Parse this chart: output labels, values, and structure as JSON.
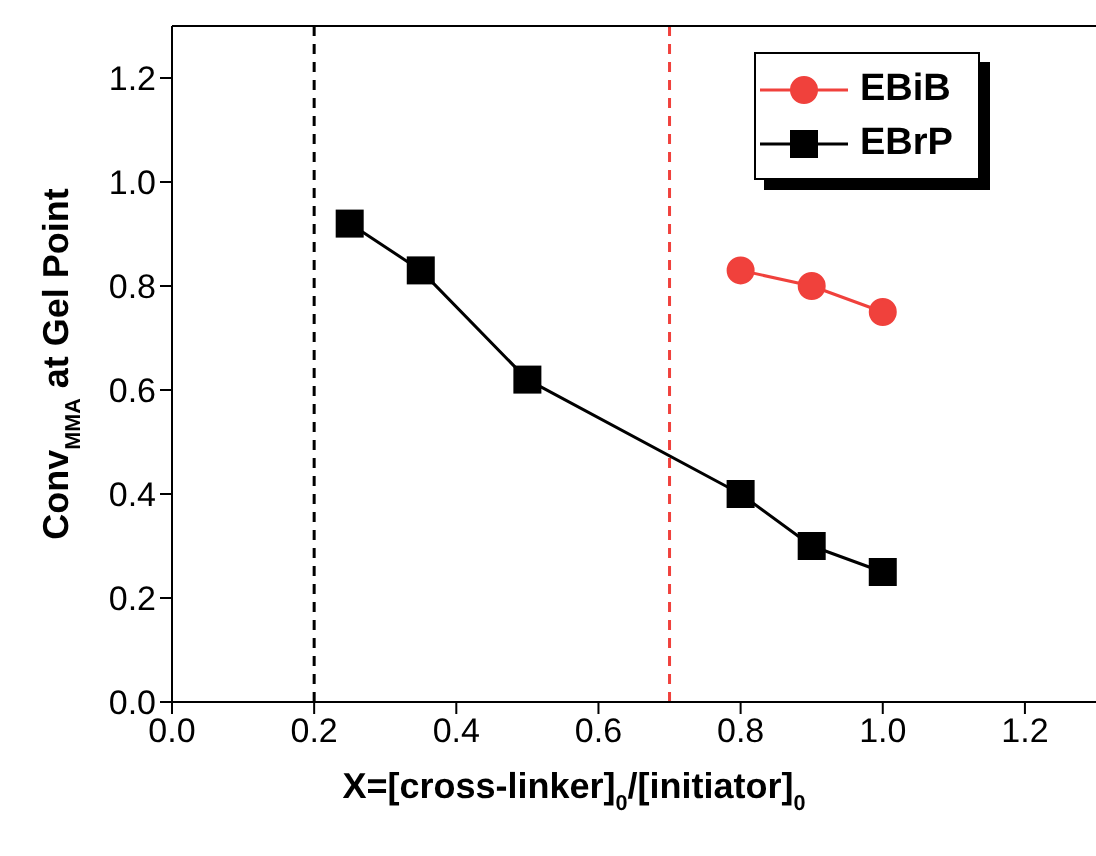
{
  "chart_data": {
    "type": "line",
    "xlabel": "X=[cross-linker]$_{0}$/[initiator]$_{0}$",
    "ylabel": "Conv$_{MMA}$ at Gel Point",
    "xlim": [
      0,
      1.3
    ],
    "xticks": [
      {
        "value": 0,
        "label": "0.0"
      },
      0.2,
      0.4,
      0.6,
      0.8,
      {
        "value": 1,
        "label": "1.0"
      },
      1.2
    ],
    "ylim": [
      0,
      1.3
    ],
    "yticks": [
      {
        "value": 0,
        "label": "0.0"
      },
      0.2,
      0.4,
      0.6,
      0.8,
      {
        "value": 1,
        "label": "1.0"
      },
      1.2
    ],
    "grid": false,
    "legend": "top right",
    "line_style": "solid",
    "series": [
      {
        "name": "EBiB",
        "color": "#f0413c",
        "marker": "circle",
        "x": [
          0.8,
          0.9,
          1.0
        ],
        "values": [
          0.83,
          0.8,
          0.75
        ]
      },
      {
        "name": "EBrP",
        "color": "#000000",
        "marker": "square",
        "x": [
          0.25,
          0.35,
          0.5,
          0.8,
          0.9,
          1.0
        ],
        "values": [
          0.92,
          0.83,
          0.62,
          0.4,
          0.3,
          0.25
        ]
      }
    ],
    "ref_lines": [
      {
        "axis": "x",
        "value": 0.2,
        "color": "#000000",
        "line_style": "dashed"
      },
      {
        "axis": "x",
        "value": 0.7,
        "color": "#f0413c",
        "line_style": "dashed"
      }
    ]
  }
}
